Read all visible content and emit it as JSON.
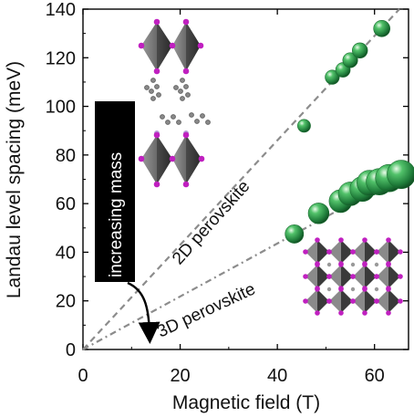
{
  "chart_data": {
    "type": "scatter",
    "xlabel": "Magnetic field (T)",
    "ylabel": "Landau level spacing (meV)",
    "xlim": [
      0,
      67
    ],
    "ylim": [
      0,
      140
    ],
    "xticks": [
      0,
      20,
      40,
      60
    ],
    "yticks": [
      0,
      20,
      40,
      60,
      80,
      100,
      120,
      140
    ],
    "grid": false,
    "series": [
      {
        "name": "2D perovskite",
        "color": "#2f9e4c",
        "x": [
          45.5,
          51.3,
          53.5,
          55.0,
          57.0,
          61.5
        ],
        "y": [
          92,
          112,
          115,
          119,
          123,
          132
        ]
      },
      {
        "name": "3D perovskite",
        "color": "#2f9e4c",
        "x": [
          43.5,
          48.5,
          53.0,
          55.0,
          57.5,
          59.0,
          61.0,
          63.0,
          65.5
        ],
        "y": [
          47.5,
          56,
          61,
          64,
          66,
          68.5,
          69,
          70.5,
          72
        ]
      }
    ],
    "fit_lines": [
      {
        "name": "2D perovskite",
        "slope": 2.15
      },
      {
        "name": "3D perovskite",
        "slope": 1.09
      }
    ],
    "annotations": {
      "line_2d": "2D perovskite",
      "line_3d": "3D perovskite",
      "mass_arrow": "increasing mass"
    }
  }
}
